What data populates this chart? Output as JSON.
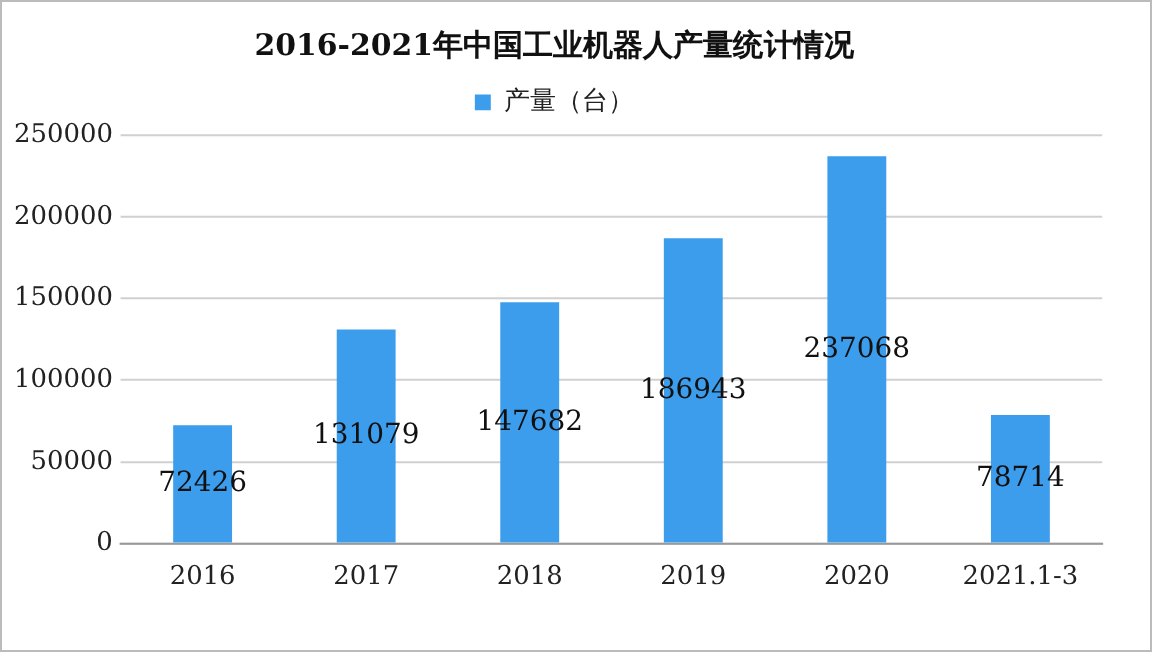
{
  "chart_data": {
    "type": "bar",
    "title": "2016-2021年中国工业机器人产量统计情况",
    "categories": [
      "2016",
      "2017",
      "2018",
      "2019",
      "2020",
      "2021.1-3"
    ],
    "series": [
      {
        "name": "产量（台）",
        "color": "#3d9ded",
        "values": [
          72426,
          131079,
          147682,
          186943,
          237068,
          78714
        ]
      }
    ],
    "ylim": [
      0,
      250000
    ],
    "yticks": [
      0,
      50000,
      100000,
      150000,
      200000,
      250000
    ],
    "grid": "y",
    "legend": "top",
    "data_labels": true
  }
}
